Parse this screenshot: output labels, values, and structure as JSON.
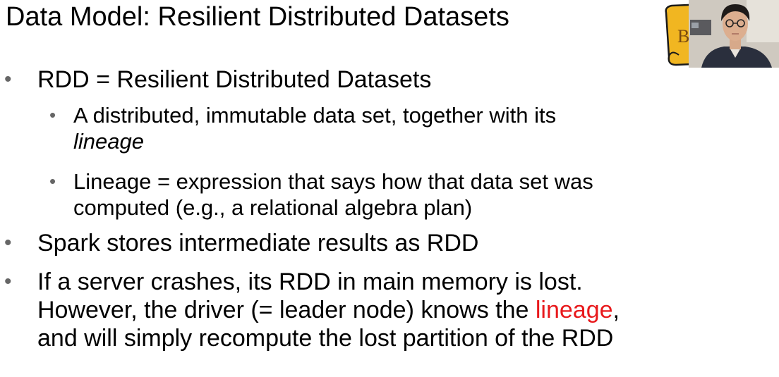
{
  "slide": {
    "title": "Data Model: Resilient Distributed Datasets",
    "bullets": [
      {
        "text": "RDD = Resilient Distributed Datasets",
        "sub": [
          {
            "text_a": "A distributed, immutable data set, together with its",
            "text_b": "lineage"
          },
          {
            "line1": "Lineage = expression that says how that data set was",
            "line2": "computed (e.g., a relational algebra plan)"
          }
        ]
      },
      {
        "text": "Spark stores intermediate results as RDD"
      },
      {
        "line1": "If a server crashes, its RDD in main memory is lost.",
        "line2_pre": "However, the driver (= leader node) knows the ",
        "line2_highlight": "lineage",
        "line2_post": ",",
        "line3": "and will simply recompute the lost partition of the RDD"
      }
    ],
    "highlight_color": "#e8191c"
  },
  "webcam": {
    "logo_letter": "B"
  }
}
